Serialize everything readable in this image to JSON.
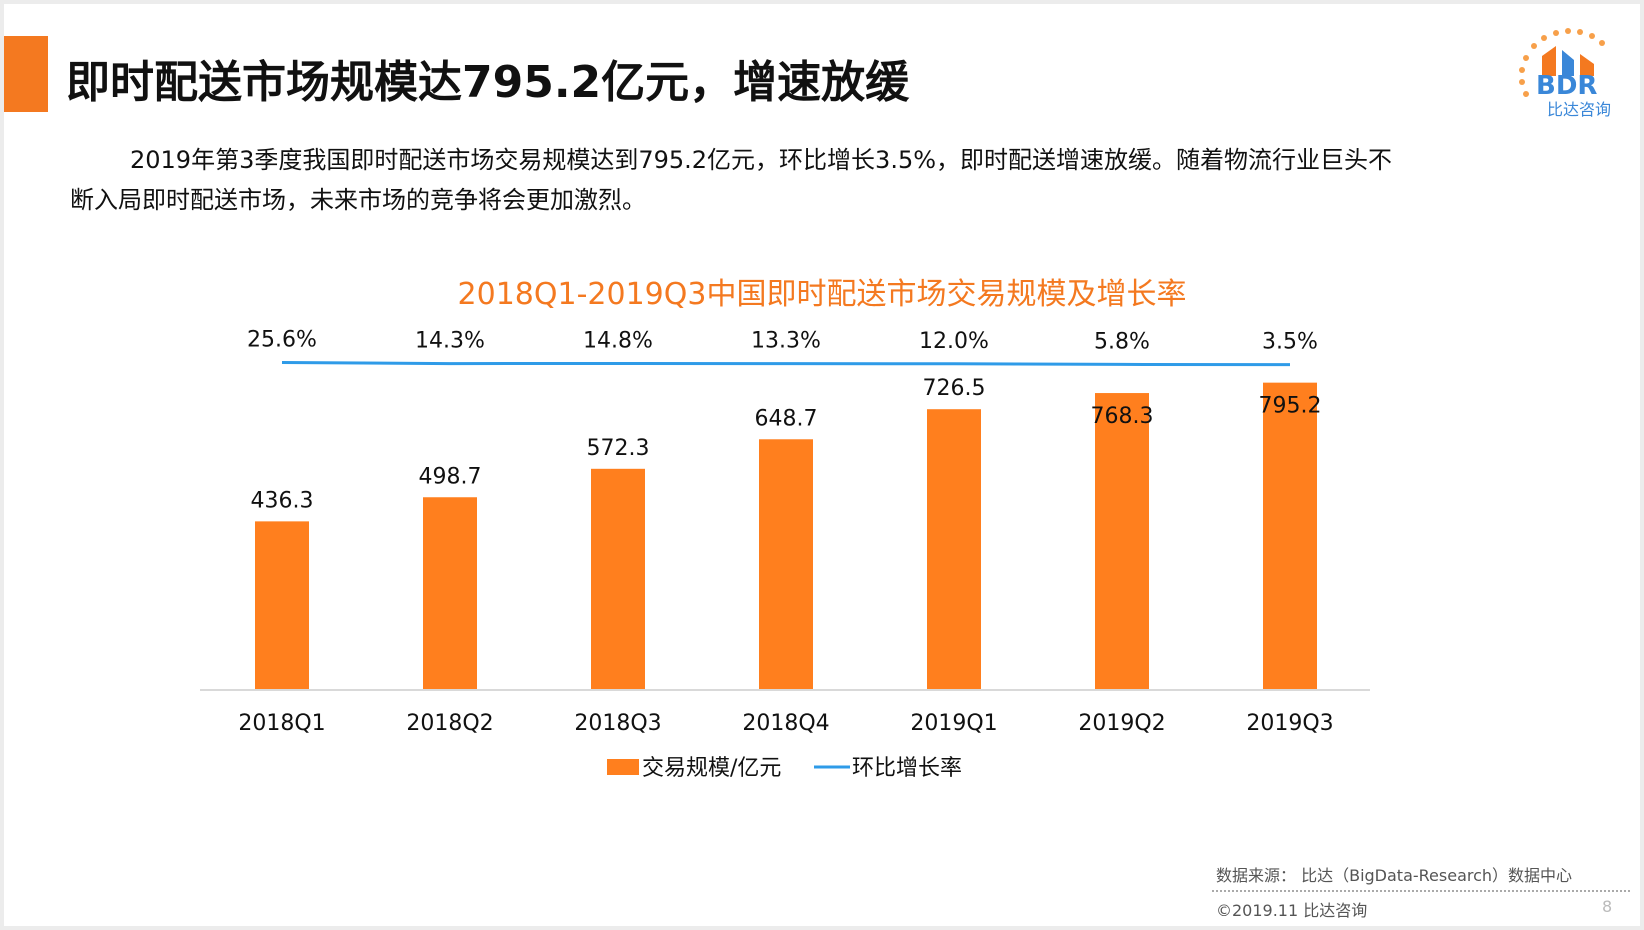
{
  "slide": {
    "title": "即时配送市场规模达795.2亿元，增速放缓",
    "intro_line1": "2019年第3季度我国即时配送市场交易规模达到795.2亿元，环比增长3.5%，即时配送增速放缓。随着物流行业巨头不",
    "intro_line2": "断入局即时配送市场，未来市场的竞争将会更加激烈。"
  },
  "logo": {
    "text": "BDR",
    "subtext": "比达咨询"
  },
  "colors": {
    "accent": "#f47920",
    "bar": "#ff7f1e",
    "line": "#2e9be8"
  },
  "chart_data": {
    "type": "bar",
    "title": "2018Q1-2019Q3中国即时配送市场交易规模及增长率",
    "categories": [
      "2018Q1",
      "2018Q2",
      "2018Q3",
      "2018Q4",
      "2019Q1",
      "2019Q2",
      "2019Q3"
    ],
    "series": [
      {
        "name": "交易规模/亿元",
        "type": "bar",
        "values": [
          436.3,
          498.7,
          572.3,
          648.7,
          726.5,
          768.3,
          795.2
        ],
        "labels": [
          "436.3",
          "498.7",
          "572.3",
          "648.7",
          "726.5",
          "768.3",
          "795.2"
        ]
      },
      {
        "name": "环比增长率",
        "type": "line",
        "values": [
          25.6,
          14.3,
          14.8,
          13.3,
          12.0,
          5.8,
          3.5
        ],
        "labels": [
          "25.6%",
          "14.3%",
          "14.8%",
          "13.3%",
          "12.0%",
          "5.8%",
          "3.5%"
        ]
      }
    ],
    "legend_position": "bottom",
    "grid": false
  },
  "footer": {
    "source": "数据来源： 比达（BigData-Research）数据中心",
    "copyright": "©2019.11  比达咨询",
    "page": "8"
  }
}
